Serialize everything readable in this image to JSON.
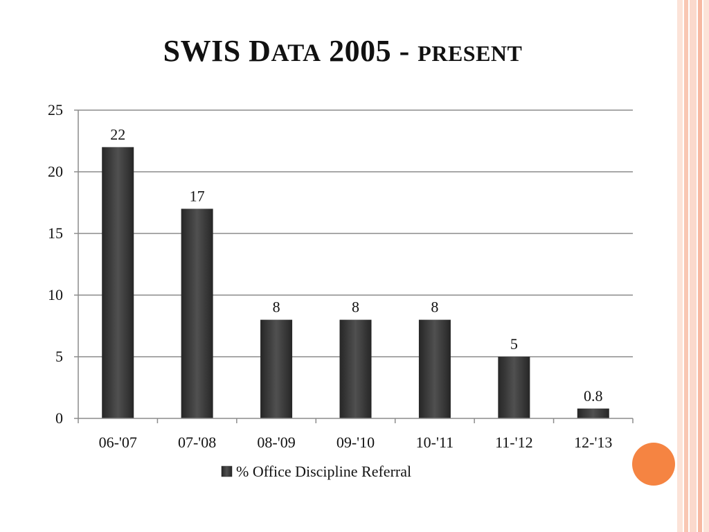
{
  "slide": {
    "title_main": "SWIS D",
    "title_smallcaps": "ATA",
    "title_mid": " 2005 - ",
    "title_tail": "PRESENT"
  },
  "colors": {
    "bar": "#3a3a3a",
    "bar_highlight": "#505050",
    "grid": "#8c8c8c",
    "accent_dot": "#f58442",
    "stripe_light": "#fbd9cc",
    "stripe_mid": "#f7b9a2"
  },
  "chart_data": {
    "type": "bar",
    "categories": [
      "06-'07",
      "07-'08",
      "08-'09",
      "09-'10",
      "10-'11",
      "11-'12",
      "12-'13"
    ],
    "series": [
      {
        "name": "% Office Discipline Referral",
        "values": [
          22,
          17,
          8,
          8,
          8,
          5,
          0.8
        ]
      }
    ],
    "data_labels": [
      "22",
      "17",
      "8",
      "8",
      "8",
      "5",
      "0.8"
    ],
    "yticks": [
      0,
      5,
      10,
      15,
      20,
      25
    ],
    "ylim": [
      0,
      25
    ],
    "xlabel": "",
    "ylabel": "",
    "grid": true,
    "legend": "bottom"
  }
}
